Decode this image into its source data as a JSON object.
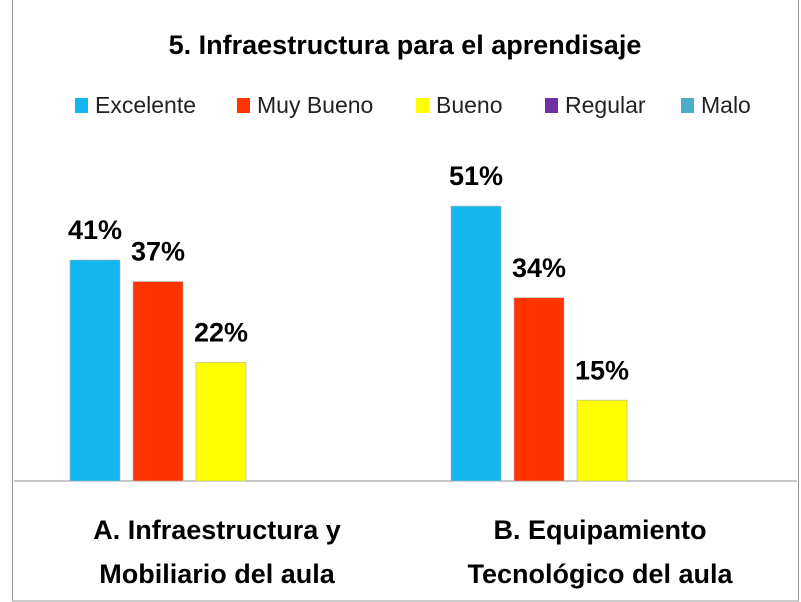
{
  "chart_data": {
    "type": "bar",
    "title": "5. Infraestructura para el aprendisaje",
    "categories": [
      "A. Infraestructura y Mobiliario del aula",
      "B. Equipamiento Tecnológico del aula"
    ],
    "series": [
      {
        "name": "Excelente",
        "color": "#12b7f0",
        "values": [
          41,
          51
        ],
        "value_labels": [
          "41%",
          "51%"
        ]
      },
      {
        "name": "Muy Bueno",
        "color": "#ff3300",
        "values": [
          37,
          34
        ],
        "value_labels": [
          "37%",
          "34%"
        ]
      },
      {
        "name": "Bueno",
        "color": "#ffff00",
        "values": [
          22,
          15
        ],
        "value_labels": [
          "22%",
          "15%"
        ]
      },
      {
        "name": "Regular",
        "color": "#7030a0",
        "values": [
          null,
          null
        ]
      },
      {
        "name": "Malo",
        "color": "#4bacc6",
        "values": [
          null,
          null
        ]
      }
    ],
    "legend": "top"
  }
}
